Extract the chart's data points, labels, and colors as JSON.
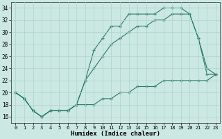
{
  "xlabel": "Humidex (Indice chaleur)",
  "background_color": "#cce8e3",
  "grid_color": "#aad4cc",
  "line_color": "#2a7a6a",
  "xlim": [
    -0.5,
    23.5
  ],
  "ylim": [
    15,
    35
  ],
  "xticks": [
    0,
    1,
    2,
    3,
    4,
    5,
    6,
    7,
    8,
    9,
    10,
    11,
    12,
    13,
    14,
    15,
    16,
    17,
    18,
    19,
    20,
    21,
    22,
    23
  ],
  "yticks": [
    16,
    18,
    20,
    22,
    24,
    26,
    28,
    30,
    32,
    34
  ],
  "series1_x": [
    0,
    1,
    2,
    3,
    4,
    5,
    6,
    7,
    8,
    9,
    10,
    11,
    12,
    13,
    14,
    15,
    16,
    17,
    18,
    19,
    20,
    21,
    22,
    23
  ],
  "series1_y": [
    20,
    19,
    17,
    16,
    17,
    17,
    17,
    18,
    22,
    27,
    29,
    31,
    31,
    33,
    33,
    33,
    33,
    34,
    34,
    34,
    33,
    29,
    24,
    23
  ],
  "series2_x": [
    0,
    1,
    2,
    3,
    4,
    5,
    6,
    7,
    8,
    9,
    10,
    11,
    12,
    13,
    14,
    15,
    16,
    17,
    18,
    19,
    20,
    21,
    22,
    23
  ],
  "series2_y": [
    20,
    19,
    17,
    16,
    17,
    17,
    17,
    18,
    22,
    24,
    26,
    28,
    29,
    30,
    31,
    31,
    32,
    32,
    33,
    33,
    33,
    29,
    23,
    23
  ],
  "series3_x": [
    0,
    1,
    2,
    3,
    4,
    5,
    6,
    7,
    8,
    9,
    10,
    11,
    12,
    13,
    14,
    15,
    16,
    17,
    18,
    19,
    20,
    21,
    22,
    23
  ],
  "series3_y": [
    20,
    19,
    17,
    16,
    17,
    17,
    17,
    18,
    18,
    18,
    19,
    19,
    20,
    20,
    21,
    21,
    21,
    22,
    22,
    22,
    22,
    22,
    22,
    23
  ]
}
